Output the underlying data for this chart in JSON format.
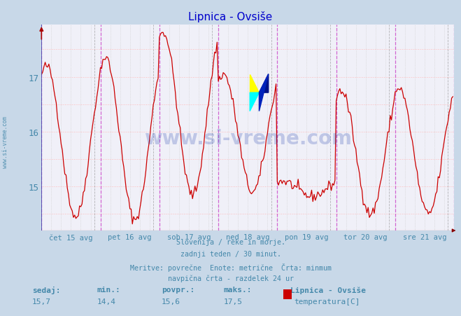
{
  "title": "Lipnica - Ovsiše",
  "title_color": "#0000cc",
  "bg_color": "#c8d8e8",
  "plot_bg_color": "#f0f0f8",
  "line_color": "#cc0000",
  "ylabel_color": "#4488aa",
  "xlabel_color": "#4488aa",
  "vline_magenta": "#cc44cc",
  "vline_gray": "#aaaaaa",
  "hgrid_color": "#ffaaaa",
  "vgrid_color": "#cccccc",
  "watermark_text": "www.si-vreme.com",
  "watermark_color": "#1133aa",
  "xlabels": [
    "čet 15 avg",
    "pet 16 avg",
    "sob 17 avg",
    "ned 18 avg",
    "pon 19 avg",
    "tor 20 avg",
    "sre 21 avg"
  ],
  "yticks": [
    15,
    16,
    17
  ],
  "ymin": 14.2,
  "ymax": 17.95,
  "footer_lines": [
    "Slovenija / reke in morje.",
    "zadnji teden / 30 minut.",
    "Meritve: povrečne  Enote: metrične  Črta: minmum",
    "navpična črta - razdelek 24 ur"
  ],
  "footer_color": "#4488aa",
  "stat_labels": [
    "sedaj:",
    "min.:",
    "povpr.:",
    "maks.:"
  ],
  "stat_values": [
    "15,7",
    "14,4",
    "15,6",
    "17,5"
  ],
  "legend_label": "Lipnica - Ovsiše",
  "legend_series": "temperatura[C]",
  "legend_color": "#cc0000",
  "n_days": 7,
  "points_per_day": 48,
  "axis_color": "#4444aa",
  "sidebar_text": "www.si-vreme.com",
  "sidebar_color": "#4488aa"
}
